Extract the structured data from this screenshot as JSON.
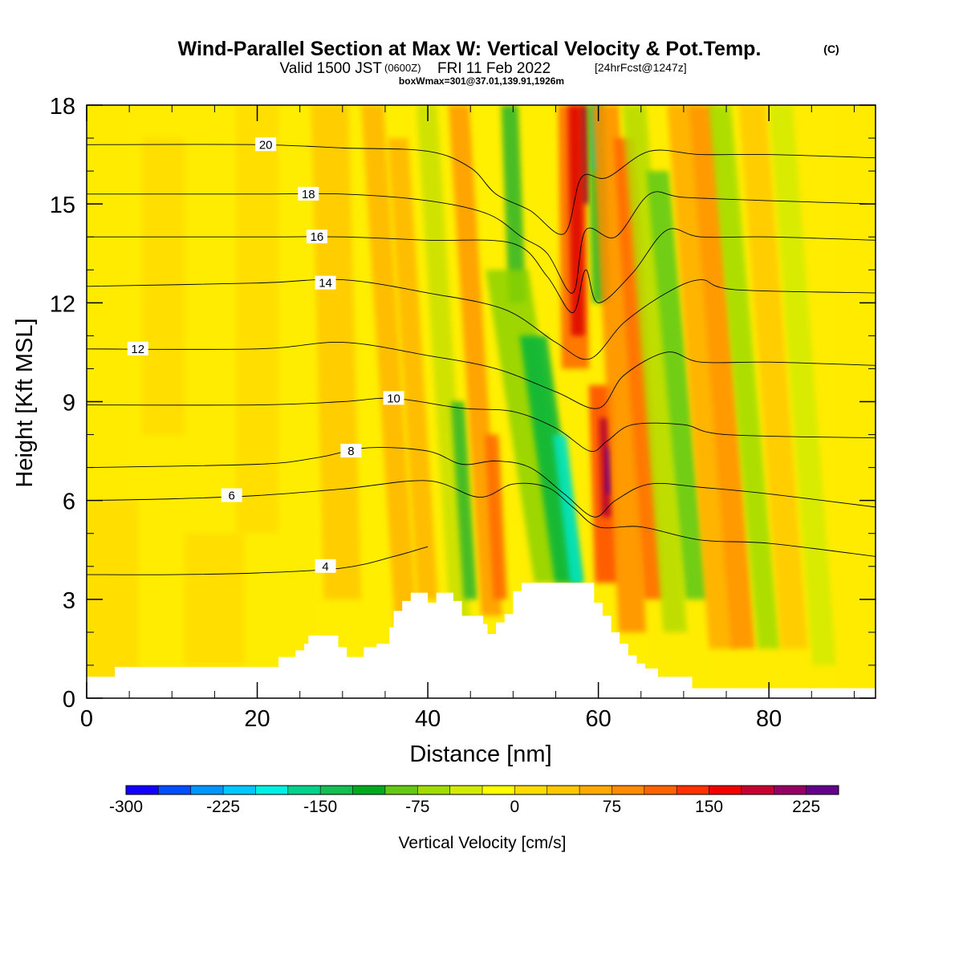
{
  "title": {
    "main": "Wind-Parallel Section at Max W: Vertical Velocity & Pot.Temp.",
    "copyright": "(C)",
    "valid_prefix": "Valid 1500 JST",
    "utc": "(0600Z)",
    "valid_date": "FRI 11 Feb 2022",
    "forecast": "[24hrFcst@1247z]",
    "boxmax": "boxWmax=301@37.01,139.91,1926m"
  },
  "chart_data": {
    "type": "heatmap",
    "xlabel": "Distance [nm]",
    "ylabel": "Height [Kft MSL]",
    "xlim": [
      0,
      92.5
    ],
    "ylim": [
      0,
      18
    ],
    "x_ticks": [
      0,
      20,
      40,
      60,
      80
    ],
    "y_ticks": [
      0,
      3,
      6,
      9,
      12,
      15,
      18
    ],
    "colorbar": {
      "label": "Vertical Velocity [cm/s]",
      "min": -300,
      "max": 250,
      "step": 25,
      "tick_values": [
        -300,
        -225,
        -150,
        -75,
        0,
        75,
        150,
        225
      ],
      "colors": [
        "#1400ff",
        "#0050ff",
        "#0096ff",
        "#00c8ff",
        "#00f0e6",
        "#00d28c",
        "#14be50",
        "#00aa1e",
        "#64c814",
        "#a0dc00",
        "#d2eb00",
        "#ffff00",
        "#ffdc00",
        "#ffc800",
        "#ffaa00",
        "#ff8c00",
        "#ff6400",
        "#ff3200",
        "#f00000",
        "#c80032",
        "#960064",
        "#64008c"
      ]
    },
    "terrain": [
      [
        0,
        0.65
      ],
      [
        3.3,
        0.65
      ],
      [
        3.3,
        0.95
      ],
      [
        22.5,
        0.95
      ],
      [
        22.5,
        1.25
      ],
      [
        24.5,
        1.25
      ],
      [
        24.5,
        1.45
      ],
      [
        25.5,
        1.45
      ],
      [
        25.5,
        1.65
      ],
      [
        26,
        1.65
      ],
      [
        26,
        1.9
      ],
      [
        29.5,
        1.9
      ],
      [
        29.5,
        1.55
      ],
      [
        30.5,
        1.55
      ],
      [
        30.5,
        1.25
      ],
      [
        32.5,
        1.25
      ],
      [
        32.5,
        1.55
      ],
      [
        34,
        1.55
      ],
      [
        34,
        1.65
      ],
      [
        35.5,
        1.65
      ],
      [
        35.5,
        2.15
      ],
      [
        36,
        2.15
      ],
      [
        36,
        2.65
      ],
      [
        37,
        2.65
      ],
      [
        37,
        2.95
      ],
      [
        38,
        2.95
      ],
      [
        38,
        3.2
      ],
      [
        40,
        3.2
      ],
      [
        40,
        2.9
      ],
      [
        41,
        2.9
      ],
      [
        41,
        3.2
      ],
      [
        43,
        3.2
      ],
      [
        43,
        2.95
      ],
      [
        44,
        2.95
      ],
      [
        44,
        2.5
      ],
      [
        46.5,
        2.5
      ],
      [
        46.5,
        2.25
      ],
      [
        47,
        2.25
      ],
      [
        47,
        1.95
      ],
      [
        48,
        1.95
      ],
      [
        48,
        2.3
      ],
      [
        49,
        2.3
      ],
      [
        49,
        2.55
      ],
      [
        50,
        2.55
      ],
      [
        50,
        3.25
      ],
      [
        51,
        3.25
      ],
      [
        51,
        3.5
      ],
      [
        59.5,
        3.5
      ],
      [
        59.5,
        2.9
      ],
      [
        60.5,
        2.9
      ],
      [
        60.5,
        2.5
      ],
      [
        61.5,
        2.5
      ],
      [
        61.5,
        2.0
      ],
      [
        62.5,
        2.0
      ],
      [
        62.5,
        1.65
      ],
      [
        63.5,
        1.65
      ],
      [
        63.5,
        1.3
      ],
      [
        64.5,
        1.3
      ],
      [
        64.5,
        1.05
      ],
      [
        65.5,
        1.05
      ],
      [
        65.5,
        0.9
      ],
      [
        67,
        0.9
      ],
      [
        67,
        0.65
      ],
      [
        71,
        0.65
      ],
      [
        71,
        0.3
      ],
      [
        92.5,
        0.3
      ]
    ],
    "theta_contours": [
      {
        "label": "4",
        "pts": [
          [
            0,
            3.75
          ],
          [
            10,
            3.75
          ],
          [
            20,
            3.8
          ],
          [
            30,
            3.95
          ],
          [
            36,
            4.3
          ],
          [
            40,
            4.6
          ]
        ],
        "at": [
          28,
          4.0
        ]
      },
      {
        "label": "6",
        "pts": [
          [
            0,
            6.0
          ],
          [
            10,
            6.05
          ],
          [
            20,
            6.15
          ],
          [
            30,
            6.35
          ],
          [
            40,
            6.6
          ],
          [
            46,
            6.1
          ],
          [
            50,
            6.5
          ],
          [
            54,
            6.4
          ],
          [
            57,
            5.8
          ],
          [
            60,
            5.2
          ],
          [
            65,
            5.2
          ],
          [
            72,
            4.8
          ],
          [
            80,
            4.7
          ],
          [
            92.5,
            4.3
          ]
        ],
        "at": [
          17,
          6.15
        ]
      },
      {
        "label": "8",
        "pts": [
          [
            0,
            7.0
          ],
          [
            20,
            7.1
          ],
          [
            27,
            7.3
          ],
          [
            33,
            7.6
          ],
          [
            40,
            7.5
          ],
          [
            44,
            7.1
          ],
          [
            48,
            7.2
          ],
          [
            52,
            7.0
          ],
          [
            56,
            6.2
          ],
          [
            59.5,
            5.5
          ],
          [
            62,
            6.0
          ],
          [
            66,
            6.5
          ],
          [
            72,
            6.4
          ],
          [
            80,
            6.2
          ],
          [
            92.5,
            5.8
          ]
        ],
        "at": [
          31,
          7.5
        ]
      },
      {
        "label": "10",
        "pts": [
          [
            0,
            8.9
          ],
          [
            20,
            8.9
          ],
          [
            30,
            9.0
          ],
          [
            36,
            9.1
          ],
          [
            44,
            8.8
          ],
          [
            50,
            8.7
          ],
          [
            55,
            8.2
          ],
          [
            59,
            7.5
          ],
          [
            61,
            7.8
          ],
          [
            64,
            8.3
          ],
          [
            70,
            8.3
          ],
          [
            75,
            8.0
          ],
          [
            92.5,
            7.9
          ]
        ],
        "at": [
          36,
          9.1
        ]
      },
      {
        "label": "12",
        "pts": [
          [
            0,
            10.6
          ],
          [
            20,
            10.6
          ],
          [
            30,
            10.8
          ],
          [
            40,
            10.4
          ],
          [
            48,
            10.0
          ],
          [
            55,
            9.3
          ],
          [
            60,
            8.8
          ],
          [
            63,
            9.8
          ],
          [
            68,
            10.5
          ],
          [
            72,
            10.2
          ],
          [
            80,
            10.2
          ],
          [
            92.5,
            10.1
          ]
        ],
        "at": [
          6,
          10.6
        ]
      },
      {
        "label": "14",
        "pts": [
          [
            0,
            12.5
          ],
          [
            20,
            12.6
          ],
          [
            30,
            12.7
          ],
          [
            40,
            12.3
          ],
          [
            49,
            11.8
          ],
          [
            55,
            10.8
          ],
          [
            59,
            10.3
          ],
          [
            63,
            11.4
          ],
          [
            68,
            12.3
          ],
          [
            72,
            12.7
          ],
          [
            76,
            12.4
          ],
          [
            92.5,
            12.3
          ]
        ],
        "at": [
          28,
          12.6
        ]
      },
      {
        "label": "16",
        "pts": [
          [
            0,
            14.0
          ],
          [
            20,
            14.0
          ],
          [
            30,
            14.0
          ],
          [
            40,
            13.9
          ],
          [
            50,
            13.8
          ],
          [
            54,
            12.8
          ],
          [
            57,
            11.7
          ],
          [
            58.5,
            13.0
          ],
          [
            60,
            12.0
          ],
          [
            64,
            12.9
          ],
          [
            68,
            14.2
          ],
          [
            72,
            14.0
          ],
          [
            80,
            14.0
          ],
          [
            92.5,
            13.9
          ]
        ],
        "at": [
          27,
          14.0
        ]
      },
      {
        "label": "18",
        "pts": [
          [
            0,
            15.3
          ],
          [
            20,
            15.3
          ],
          [
            30,
            15.3
          ],
          [
            40,
            15.1
          ],
          [
            47,
            14.7
          ],
          [
            51,
            14.0
          ],
          [
            54,
            13.5
          ],
          [
            57,
            12.3
          ],
          [
            58.5,
            14.2
          ],
          [
            62,
            14.0
          ],
          [
            66,
            15.3
          ],
          [
            70,
            15.2
          ],
          [
            80,
            15.1
          ],
          [
            92.5,
            15.0
          ]
        ],
        "at": [
          26,
          15.3
        ]
      },
      {
        "label": "20",
        "pts": [
          [
            0,
            16.8
          ],
          [
            20,
            16.8
          ],
          [
            30,
            16.7
          ],
          [
            40,
            16.6
          ],
          [
            45,
            16.1
          ],
          [
            48,
            15.3
          ],
          [
            52,
            14.8
          ],
          [
            56,
            14.1
          ],
          [
            58,
            15.8
          ],
          [
            61,
            15.8
          ],
          [
            66,
            16.6
          ],
          [
            72,
            16.5
          ],
          [
            80,
            16.5
          ],
          [
            92.5,
            16.4
          ]
        ],
        "at": [
          21,
          16.8
        ]
      }
    ]
  }
}
